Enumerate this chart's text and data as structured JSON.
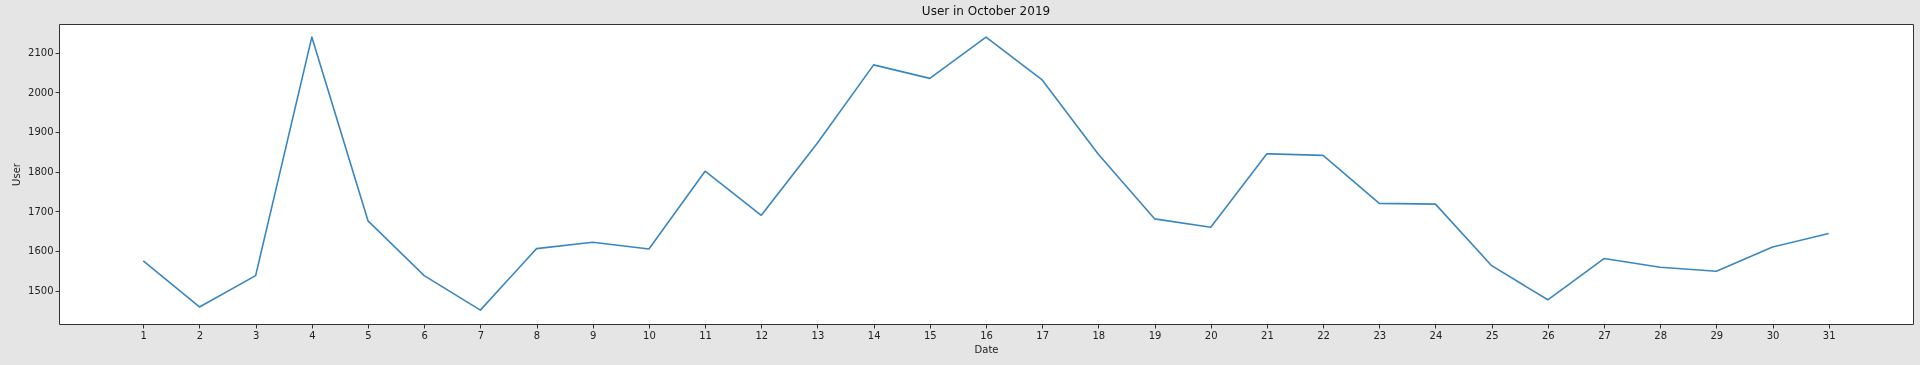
{
  "chart_data": {
    "type": "line",
    "title": "User in October 2019",
    "xlabel": "Date",
    "ylabel": "User",
    "x": [
      1,
      2,
      3,
      4,
      5,
      6,
      7,
      8,
      9,
      10,
      11,
      12,
      13,
      14,
      15,
      16,
      17,
      18,
      19,
      20,
      21,
      22,
      23,
      24,
      25,
      26,
      27,
      28,
      29,
      30,
      31
    ],
    "series": [
      {
        "color": "#3a87c0",
        "values": [
          1575,
          1459,
          1538,
          2139,
          1676,
          1538,
          1451,
          1606,
          1622,
          1605,
          1801,
          1690,
          1872,
          2069,
          2035,
          2139,
          2031,
          1844,
          1681,
          1660,
          1845,
          1841,
          1720,
          1718,
          1563,
          1477,
          1581,
          1559,
          1549,
          1610,
          1644
        ]
      }
    ],
    "xlim": [
      -0.5,
      32.5
    ],
    "xticks": [
      1,
      2,
      3,
      4,
      5,
      6,
      7,
      8,
      9,
      10,
      11,
      12,
      13,
      14,
      15,
      16,
      17,
      18,
      19,
      20,
      21,
      22,
      23,
      24,
      25,
      26,
      27,
      28,
      29,
      30,
      31
    ],
    "ylim": [
      1416,
      2172
    ],
    "yticks": [
      1500,
      1600,
      1700,
      1800,
      1900,
      2000,
      2100
    ],
    "grid": false,
    "legend": false,
    "marker": "none",
    "line_style": "solid"
  }
}
